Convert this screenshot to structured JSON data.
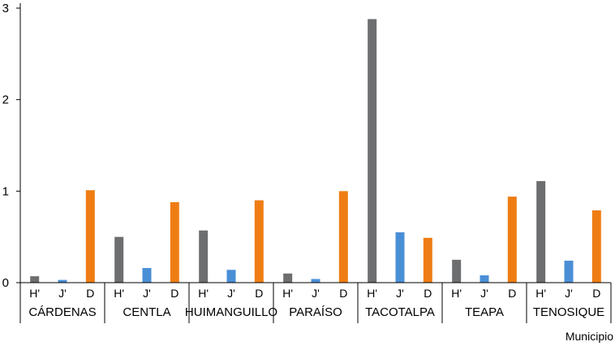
{
  "chart_data": {
    "type": "bar",
    "xlabel": "Municipio",
    "ylabel": "",
    "ylim": [
      0,
      3
    ],
    "yticks": [
      "0",
      "1",
      "2",
      "3"
    ],
    "grid": false,
    "legend": "none",
    "groups": [
      {
        "label": "CÁRDENAS",
        "values": [
          0.07,
          0.03,
          1.01
        ]
      },
      {
        "label": "CENTLA",
        "values": [
          0.5,
          0.16,
          0.88
        ]
      },
      {
        "label": "HUIMANGUILLO",
        "values": [
          0.57,
          0.14,
          0.9
        ]
      },
      {
        "label": "PARAÍSO",
        "values": [
          0.1,
          0.04,
          1.0
        ]
      },
      {
        "label": "TACOTALPA",
        "values": [
          2.88,
          0.55,
          0.49
        ]
      },
      {
        "label": "TEAPA",
        "values": [
          0.25,
          0.08,
          0.94
        ]
      },
      {
        "label": "TENOSIQUE",
        "values": [
          1.11,
          0.24,
          0.79
        ]
      }
    ],
    "series": [
      {
        "name": "H'",
        "color": "#6d6e70"
      },
      {
        "name": "J'",
        "color": "#4a8fd6"
      },
      {
        "name": "D",
        "color": "#ef7d14"
      }
    ]
  }
}
